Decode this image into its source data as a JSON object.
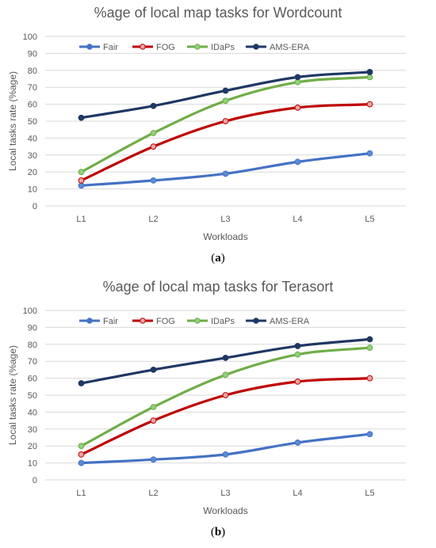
{
  "chart_data": [
    {
      "type": "line",
      "caption": "(a)",
      "caption_letter": "a",
      "title": "%age of local map tasks for Wordcount",
      "xlabel": "Workloads",
      "ylabel": "Local tasks rate (%age)",
      "categories": [
        "L1",
        "L2",
        "L3",
        "L4",
        "L5"
      ],
      "ylim": [
        0,
        100
      ],
      "yticks": [
        0,
        10,
        20,
        30,
        40,
        50,
        60,
        70,
        80,
        90,
        100
      ],
      "grid": true,
      "legend_position": "top",
      "series": [
        {
          "name": "Fair",
          "color": "#4472C4",
          "values": [
            12,
            15,
            19,
            26,
            31
          ]
        },
        {
          "name": "FOG",
          "color": "#C00000",
          "values": [
            15,
            35,
            50,
            58,
            60
          ]
        },
        {
          "name": "IDaPs",
          "color": "#70AD47",
          "values": [
            20,
            43,
            62,
            73,
            76
          ]
        },
        {
          "name": "AMS-ERA",
          "color": "#1F3864",
          "values": [
            52,
            59,
            68,
            76,
            79
          ]
        }
      ]
    },
    {
      "type": "line",
      "caption": "(b)",
      "caption_letter": "b",
      "title": "%age of local map tasks for Terasort",
      "xlabel": "Workloads",
      "ylabel": "Local tasks rate (%age)",
      "categories": [
        "L1",
        "L2",
        "L3",
        "L4",
        "L5"
      ],
      "ylim": [
        0,
        100
      ],
      "yticks": [
        0,
        10,
        20,
        30,
        40,
        50,
        60,
        70,
        80,
        90,
        100
      ],
      "grid": true,
      "legend_position": "top",
      "series": [
        {
          "name": "Fair",
          "color": "#4472C4",
          "values": [
            10,
            12,
            15,
            22,
            27
          ]
        },
        {
          "name": "FOG",
          "color": "#C00000",
          "values": [
            15,
            35,
            50,
            58,
            60
          ]
        },
        {
          "name": "IDaPs",
          "color": "#70AD47",
          "values": [
            20,
            43,
            62,
            74,
            78
          ]
        },
        {
          "name": "AMS-ERA",
          "color": "#1F3864",
          "values": [
            57,
            65,
            72,
            79,
            83
          ]
        }
      ]
    }
  ]
}
